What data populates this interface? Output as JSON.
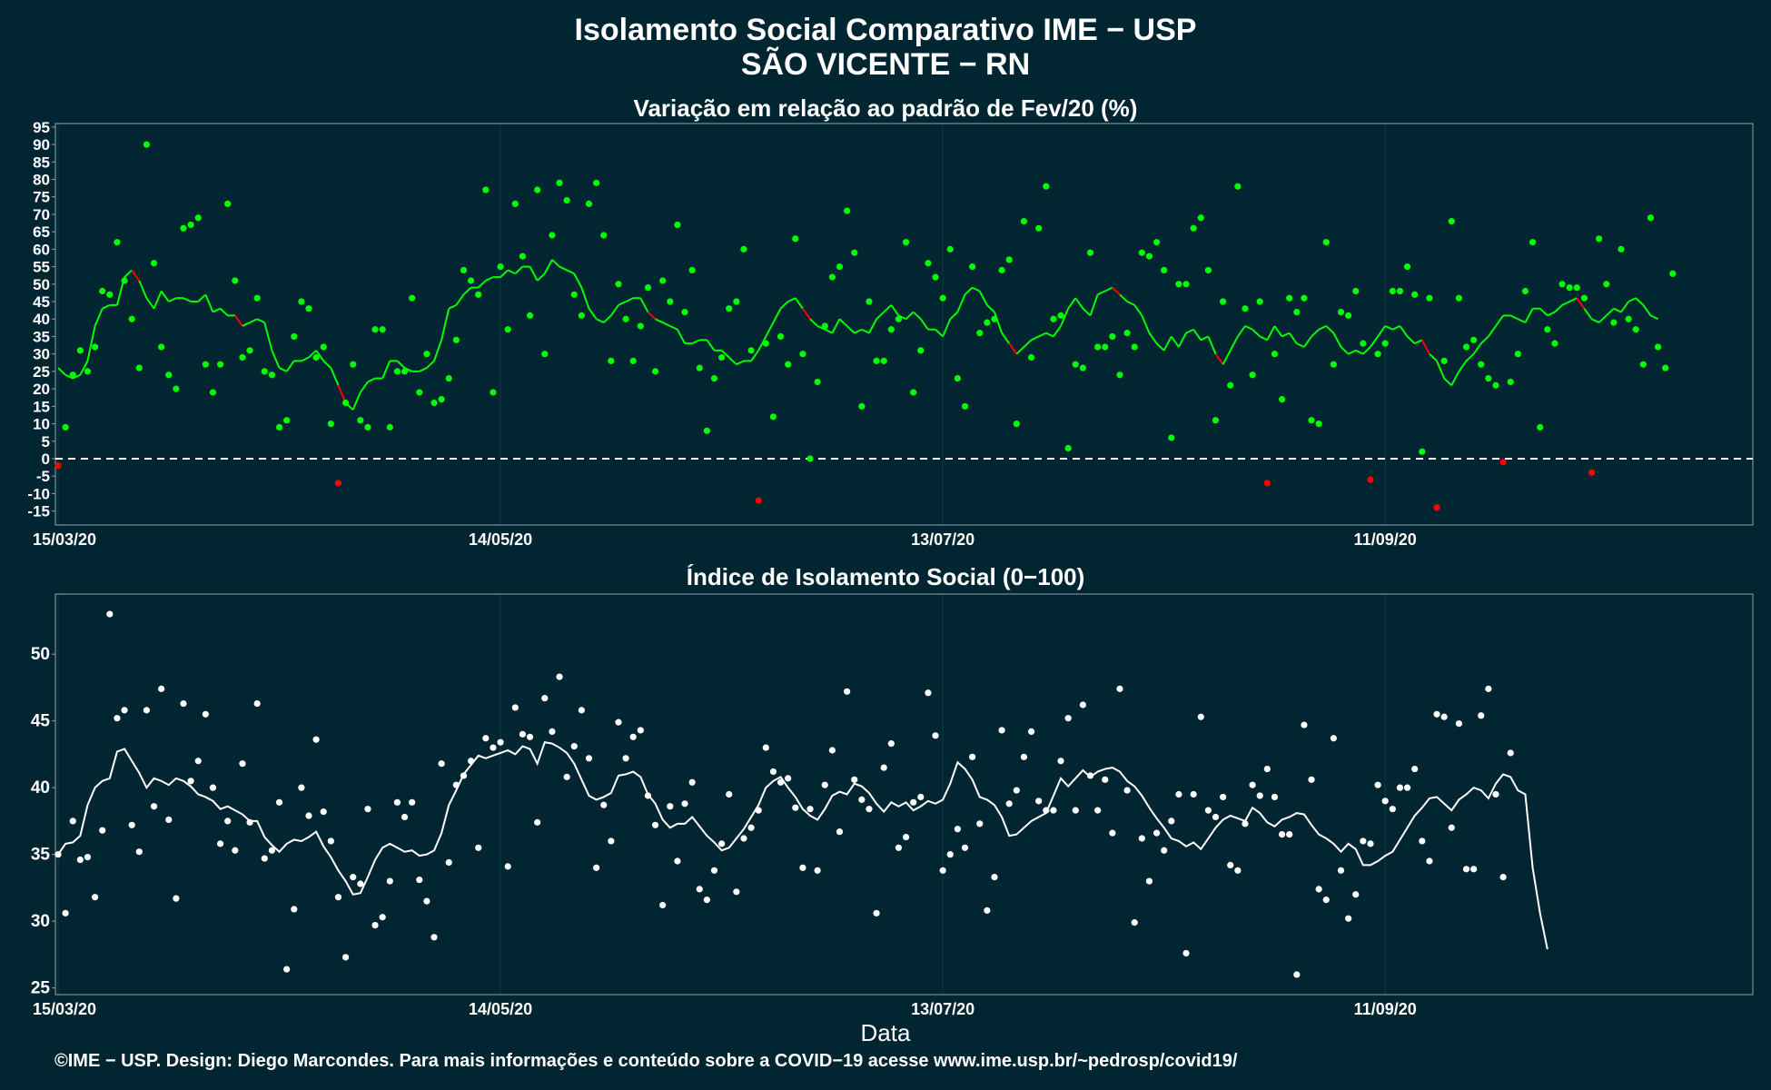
{
  "title_line1": "Isolamento Social Comparativo IME − USP",
  "title_line2": "SÃO VICENTE − RN",
  "xlabel": "Data",
  "footer": "©IME − USP. Design: Diego Marcondes. Para mais informações e conteúdo sobre a COVID−19 acesse www.ime.usp.br/~pedrosp/covid19/",
  "colors": {
    "background": "#022631",
    "positive": "#00ff00",
    "negative": "#ff0000",
    "index": "#ffffff",
    "axis_text": "#ffffff"
  },
  "chart_data": [
    {
      "type": "scatter",
      "subtitle": "Variação em relação ao padrão de Fev/20 (%)",
      "xlabel": "",
      "ylabel": "",
      "x_start": "15/03/20",
      "x_end": "30/10/20",
      "xticks": [
        "15/03/20",
        "14/05/20",
        "13/07/20",
        "11/09/20"
      ],
      "yticks": [
        -15,
        -10,
        -5,
        0,
        5,
        10,
        15,
        20,
        25,
        30,
        35,
        40,
        45,
        50,
        55,
        60,
        65,
        70,
        75,
        80,
        85,
        90,
        95
      ],
      "ylim": [
        -19,
        96
      ],
      "reference_line": 0,
      "smoothing": "7-day moving average line",
      "values": [
        -2,
        9,
        24,
        31,
        25,
        32,
        48,
        47,
        62,
        51,
        40,
        26,
        90,
        56,
        32,
        24,
        20,
        66,
        67,
        69,
        27,
        19,
        27,
        73,
        51,
        29,
        31,
        46,
        25,
        24,
        9,
        11,
        35,
        45,
        43,
        29,
        32,
        10,
        -7,
        16,
        27,
        11,
        9,
        37,
        37,
        9,
        25,
        25,
        46,
        19,
        30,
        16,
        17,
        23,
        34,
        54,
        51,
        47,
        77,
        19,
        55,
        37,
        73,
        58,
        41,
        77,
        30,
        64,
        79,
        74,
        47,
        41,
        73,
        79,
        64,
        28,
        50,
        40,
        28,
        38,
        49,
        25,
        51,
        45,
        67,
        42,
        54,
        26,
        8,
        23,
        29,
        43,
        45,
        60,
        31,
        -12,
        33,
        12,
        35,
        27,
        63,
        30,
        0,
        22,
        38,
        52,
        55,
        71,
        59,
        15,
        45,
        28,
        28,
        37,
        40,
        62,
        19,
        31,
        56,
        52,
        46,
        60,
        23,
        15,
        55,
        36,
        39,
        40,
        54,
        57,
        10,
        68,
        29,
        66,
        78,
        40,
        41,
        3,
        27,
        26,
        59,
        32,
        32,
        35,
        24,
        36,
        32,
        59,
        58,
        62,
        54,
        6,
        50,
        50,
        66,
        69,
        54,
        11,
        45,
        21,
        78,
        43,
        24,
        45,
        -7,
        30,
        17,
        46,
        42,
        46,
        11,
        10,
        62,
        27,
        42,
        41,
        48,
        33,
        -6,
        30,
        33,
        48,
        48,
        55,
        47,
        2,
        46,
        -14,
        28,
        68,
        46,
        32,
        34,
        27,
        23,
        21,
        -1,
        22,
        30,
        48,
        62,
        9,
        37,
        33,
        50,
        49,
        49,
        46,
        -4,
        63,
        50,
        39,
        60,
        40,
        37,
        27,
        69,
        32,
        26,
        53
      ],
      "moving_average": [
        26,
        24,
        23,
        24,
        28,
        38,
        43,
        44,
        44,
        52,
        54,
        51,
        46,
        43,
        48,
        45,
        46,
        46,
        45,
        45,
        47,
        42,
        43,
        41,
        41,
        38,
        39,
        40,
        39,
        31,
        26,
        25,
        28,
        28,
        29,
        31,
        28,
        26,
        21,
        16,
        14,
        19,
        22,
        23,
        23,
        28,
        28,
        26,
        25,
        25,
        26,
        28,
        34,
        43,
        44,
        47,
        49,
        49,
        51,
        52,
        52,
        54,
        53,
        55,
        55,
        51,
        53,
        57,
        55,
        54,
        53,
        49,
        43,
        40,
        39,
        41,
        44,
        45,
        46,
        46,
        42,
        40,
        39,
        38,
        37,
        33,
        33,
        34,
        34,
        31,
        31,
        29,
        27,
        28,
        28,
        31,
        35,
        39,
        43,
        45,
        46,
        43,
        40,
        38,
        37,
        36,
        40,
        38,
        36,
        37,
        36,
        40,
        42,
        44,
        41,
        40,
        42,
        40,
        37,
        37,
        35,
        40,
        42,
        47,
        49,
        48,
        44,
        42,
        36,
        33,
        30,
        32,
        34,
        35,
        36,
        35,
        38,
        43,
        46,
        43,
        41,
        47,
        48,
        49,
        47,
        45,
        44,
        41,
        36,
        33,
        31,
        35,
        32,
        36,
        37,
        34,
        35,
        30,
        27,
        31,
        35,
        38,
        37,
        35,
        34,
        38,
        35,
        36,
        33,
        32,
        35,
        37,
        38,
        36,
        32,
        30,
        31,
        30,
        32,
        35,
        38,
        37,
        38,
        35,
        33,
        34,
        30,
        28,
        23,
        21,
        25,
        28,
        30,
        33,
        35,
        38,
        41,
        41,
        40,
        39,
        43,
        43,
        41,
        42,
        44,
        45,
        46,
        43,
        40,
        39,
        41,
        43,
        42,
        45,
        46,
        44,
        41,
        40
      ]
    },
    {
      "type": "scatter",
      "subtitle": "Índice de Isolamento Social (0−100)",
      "xlabel": "Data",
      "ylabel": "",
      "x_start": "15/03/20",
      "x_end": "30/10/20",
      "xticks": [
        "15/03/20",
        "14/05/20",
        "13/07/20",
        "11/09/20"
      ],
      "yticks": [
        25,
        30,
        35,
        40,
        45,
        50
      ],
      "ylim": [
        24.5,
        54.5
      ],
      "smoothing": "7-day moving average line",
      "values": [
        35,
        30.6,
        37.5,
        34.6,
        34.8,
        31.8,
        36.8,
        53,
        45.2,
        45.8,
        37.2,
        35.2,
        45.8,
        38.6,
        47.4,
        37.6,
        31.7,
        46.3,
        40.5,
        42,
        45.5,
        40,
        35.8,
        37.5,
        35.3,
        41.8,
        37.4,
        46.3,
        34.7,
        35.3,
        38.9,
        26.4,
        30.9,
        40,
        37.9,
        43.6,
        38.2,
        36,
        31.8,
        27.3,
        33.3,
        32.8,
        38.4,
        29.7,
        30.3,
        33,
        38.9,
        37.8,
        38.9,
        33.1,
        31.5,
        28.8,
        41.8,
        34.4,
        40.2,
        40.9,
        42,
        35.5,
        43.7,
        43,
        43.4,
        34.1,
        46,
        44,
        43.8,
        37.4,
        46.7,
        44.2,
        48.3,
        40.8,
        43.1,
        45.8,
        42.2,
        34,
        38.7,
        36,
        44.9,
        42.2,
        43.8,
        44.3,
        39.4,
        37.2,
        31.2,
        38.6,
        34.5,
        38.8,
        40.4,
        32.4,
        31.6,
        33.8,
        35.8,
        39.5,
        32.2,
        36.2,
        37,
        38.3,
        43,
        41.2,
        40.4,
        40.7,
        38.5,
        34,
        38.4,
        33.8,
        40.2,
        42.8,
        36.7,
        47.2,
        40.6,
        39.1,
        38.4,
        30.6,
        41.5,
        43.3,
        35.5,
        36.3,
        38.9,
        39.3,
        47.1,
        43.9,
        33.8,
        35,
        36.9,
        35.5,
        42.3,
        37.3,
        30.8,
        33.3,
        44.3,
        38.8,
        39.8,
        42.3,
        44.2,
        39,
        38.3,
        38.3,
        42,
        45.2,
        38.3,
        46.2,
        40.9,
        38.3,
        40.6,
        36.6,
        47.4,
        39.8,
        29.9,
        36.2,
        33,
        36.6,
        35.3,
        37.5,
        39.5,
        27.6,
        39.5,
        45.3,
        38.3,
        37.8,
        39.3,
        34.2,
        33.8,
        37.3,
        40.2,
        39.4,
        41.4,
        39.3,
        36.5,
        36.5,
        26,
        44.7,
        40.6,
        32.4,
        31.6,
        43.7,
        33.8,
        30.2,
        32,
        36,
        35.8,
        40.2,
        39,
        38.4,
        40,
        40,
        41.4,
        36,
        34.5,
        45.5,
        45.3,
        37,
        44.8,
        33.9,
        33.9,
        45.4,
        47.4,
        39.5,
        33.3,
        42.6
      ],
      "moving_average": [
        35,
        35.8,
        35.9,
        36.4,
        38.7,
        40,
        40.5,
        40.7,
        42.7,
        42.9,
        42,
        41.1,
        40,
        40.7,
        40.5,
        40.2,
        40.7,
        40.5,
        40.1,
        39.5,
        39.3,
        39,
        38.4,
        38.6,
        38.3,
        38,
        37.5,
        37.5,
        36.3,
        35.7,
        35.2,
        35.8,
        36.1,
        36,
        36.3,
        36.7,
        35.6,
        34.8,
        33.8,
        33,
        32,
        32.1,
        33.3,
        34.6,
        35.5,
        35.8,
        35.5,
        35.2,
        35.3,
        34.9,
        35,
        35.3,
        36.6,
        38.7,
        39.8,
        41,
        41.7,
        42.4,
        42.2,
        42.4,
        42.6,
        42.8,
        42.5,
        43.1,
        42.9,
        41.8,
        43.4,
        43.3,
        43,
        42.6,
        41.8,
        40.6,
        39.4,
        39.1,
        39.3,
        39.6,
        40.9,
        41,
        41.2,
        40.8,
        39.5,
        38.8,
        37.6,
        37,
        37.3,
        37.3,
        37.8,
        37.1,
        36.4,
        35.9,
        35.3,
        35.5,
        36.2,
        36.9,
        37.8,
        38.7,
        40,
        40.5,
        40.8,
        40,
        39.3,
        38.4,
        37.9,
        37.6,
        38.4,
        39.4,
        39.7,
        39.5,
        40.3,
        40.1,
        39.6,
        38.8,
        38.2,
        38.9,
        38.6,
        38.9,
        38.3,
        38.6,
        39,
        38.8,
        39.1,
        40.3,
        41.9,
        41.4,
        40.6,
        39.3,
        39.1,
        38.7,
        37.8,
        36.4,
        36.5,
        37,
        37.5,
        37.8,
        38.1,
        39.4,
        40.7,
        40.1,
        40.7,
        41.3,
        40.8,
        41.2,
        41.4,
        41.5,
        41.2,
        40.5,
        40.1,
        39.4,
        38.5,
        37.7,
        37,
        36.2,
        36,
        35.6,
        35.9,
        35.4,
        36.2,
        37,
        37.6,
        37.9,
        37.7,
        37.5,
        38.5,
        38.1,
        37.4,
        37.1,
        37.6,
        37.8,
        38.1,
        38,
        37.2,
        36.5,
        36.2,
        35.8,
        35.2,
        35.8,
        35.4,
        34.2,
        34.2,
        34.5,
        34.9,
        35.2,
        36.1,
        37,
        37.9,
        38.5,
        39.2,
        39.3,
        38.8,
        38.3,
        39.1,
        39.5,
        40,
        39.8,
        39.2,
        40.3,
        41,
        40.8,
        39.8,
        39.5,
        34,
        30.6,
        27.9
      ]
    }
  ]
}
